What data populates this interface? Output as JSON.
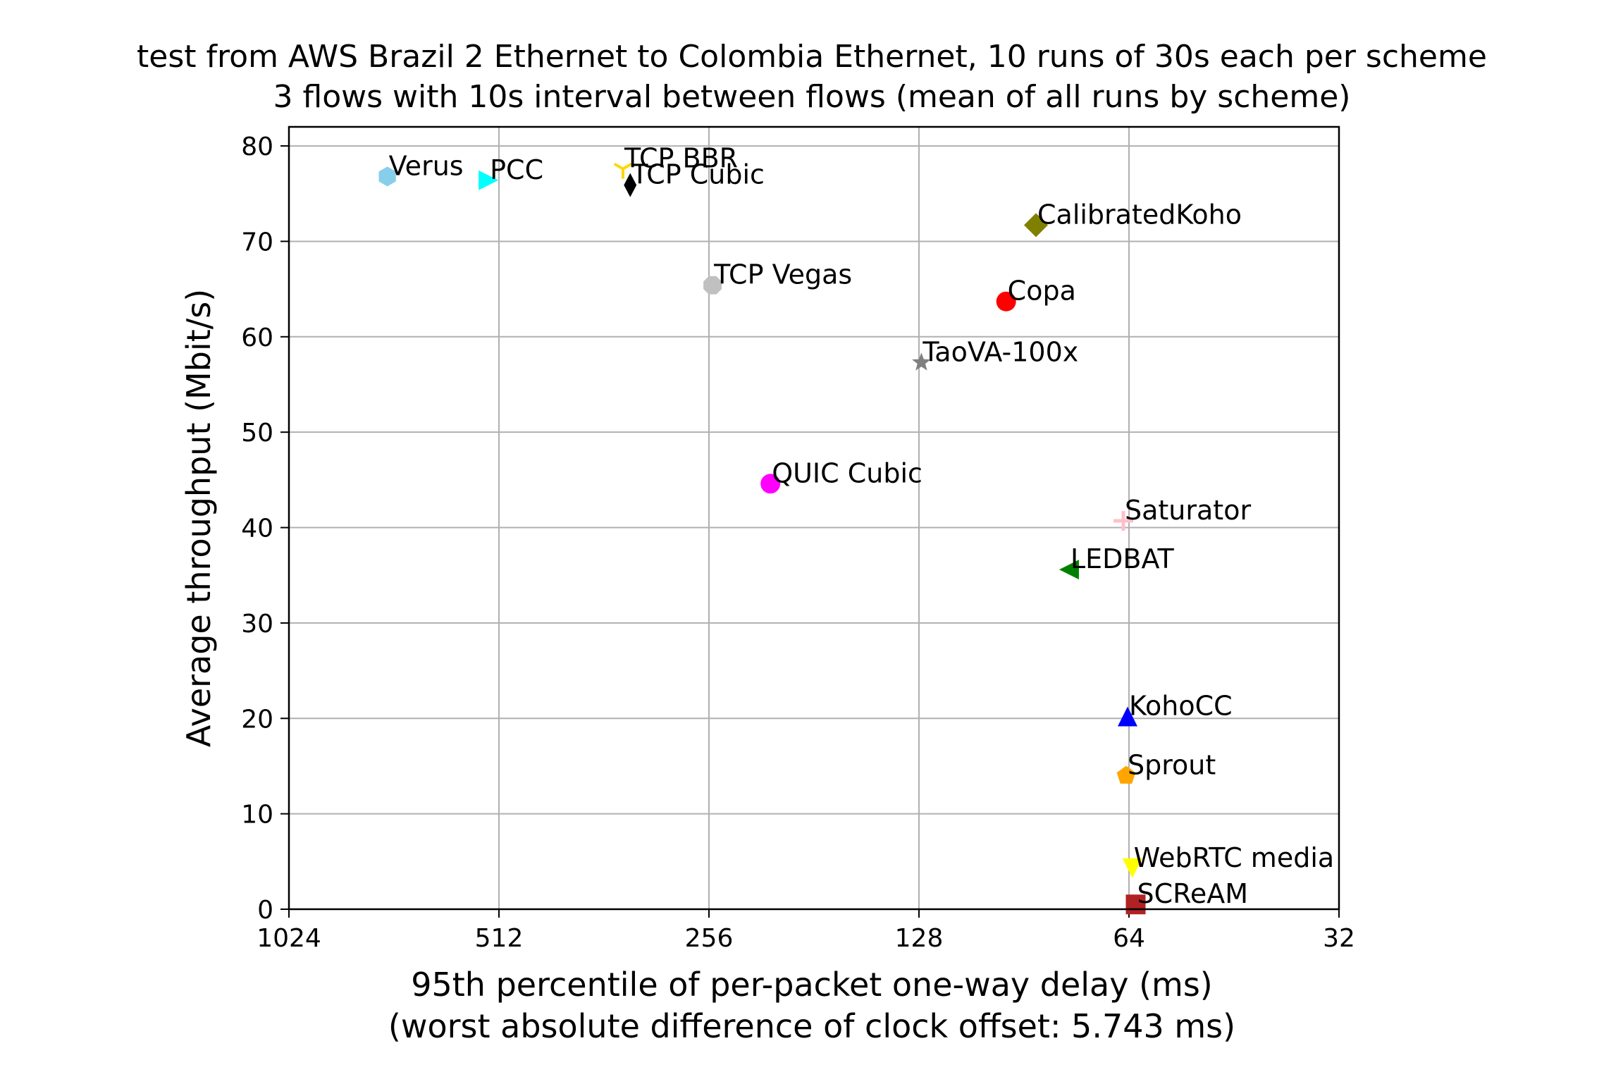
{
  "chart_data": {
    "type": "scatter",
    "title_lines": [
      "test from AWS Brazil 2 Ethernet to Colombia Ethernet, 10 runs of 30s each per scheme",
      "3 flows with 10s interval between flows (mean of all runs by scheme)"
    ],
    "xlabel_lines": [
      "95th percentile of per-packet one-way delay (ms)",
      "(worst absolute difference of clock offset: 5.743 ms)"
    ],
    "ylabel": "Average throughput (Mbit/s)",
    "x_scale": "log2",
    "x_inverted": true,
    "xlim": [
      1024,
      32
    ],
    "ylim": [
      0,
      82
    ],
    "x_ticks": [
      1024,
      512,
      256,
      128,
      64,
      32
    ],
    "x_tick_labels": [
      "1024",
      "512",
      "256",
      "128",
      "64",
      "32"
    ],
    "y_ticks": [
      0,
      10,
      20,
      30,
      40,
      50,
      60,
      70,
      80
    ],
    "y_tick_labels": [
      "0",
      "10",
      "20",
      "30",
      "40",
      "50",
      "60",
      "70",
      "80"
    ],
    "grid": true,
    "series": [
      {
        "name": "Verus",
        "x": 740,
        "y": 76.8,
        "color": "#87ceeb",
        "marker": "hexagon"
      },
      {
        "name": "PCC",
        "x": 530,
        "y": 76.4,
        "color": "#00ffff",
        "marker": "triangle-right"
      },
      {
        "name": "TCP BBR",
        "x": 340,
        "y": 77.6,
        "color": "#ffd700",
        "marker": "tri-down"
      },
      {
        "name": "TCP Cubic",
        "x": 332,
        "y": 75.9,
        "color": "#000000",
        "marker": "thin-diamond"
      },
      {
        "name": "CalibratedKoho",
        "x": 87,
        "y": 71.7,
        "color": "#808000",
        "marker": "diamond"
      },
      {
        "name": "TCP Vegas",
        "x": 253,
        "y": 65.4,
        "color": "#c0c0c0",
        "marker": "octagon"
      },
      {
        "name": "Copa",
        "x": 96,
        "y": 63.7,
        "color": "#ff0000",
        "marker": "circle"
      },
      {
        "name": "TaoVA-100x",
        "x": 127,
        "y": 57.3,
        "color": "#808080",
        "marker": "star"
      },
      {
        "name": "QUIC Cubic",
        "x": 209,
        "y": 44.6,
        "color": "#ff00ff",
        "marker": "circle"
      },
      {
        "name": "Saturator",
        "x": 65.2,
        "y": 40.7,
        "color": "#ffc0cb",
        "marker": "plus"
      },
      {
        "name": "LEDBAT",
        "x": 78,
        "y": 35.6,
        "color": "#008000",
        "marker": "triangle-left"
      },
      {
        "name": "KohoCC",
        "x": 64.3,
        "y": 20.2,
        "color": "#0000ff",
        "marker": "triangle-up"
      },
      {
        "name": "Sprout",
        "x": 64.6,
        "y": 14.0,
        "color": "#ffa500",
        "marker": "pentagon"
      },
      {
        "name": "WebRTC media",
        "x": 63.3,
        "y": 4.3,
        "color": "#ffff00",
        "marker": "triangle-down"
      },
      {
        "name": "SCReAM",
        "x": 62.6,
        "y": 0.5,
        "color": "#b22222",
        "marker": "square"
      }
    ]
  }
}
